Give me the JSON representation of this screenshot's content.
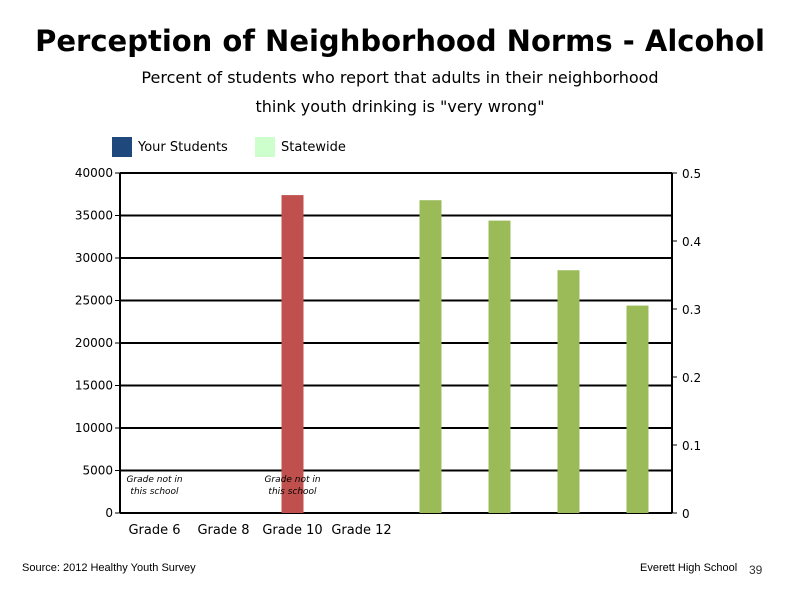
{
  "title": "Perception of Neighborhood Norms - Alcohol",
  "subtitle_line1": "Percent of students who report that adults in their neighborhood",
  "subtitle_line2": "think youth drinking is \"very wrong\"",
  "legend": [
    {
      "label": "Your Students",
      "color": "#1f497d"
    },
    {
      "label": "Statewide",
      "color": "#ccffcc"
    }
  ],
  "footer": {
    "source": "Source: 2012 Healthy Youth Survey",
    "school": "Everett High School",
    "page": "39"
  },
  "chart_data": {
    "type": "bar",
    "categories": [
      "Grade 6",
      "Grade 8",
      "Grade 10",
      "Grade 12"
    ],
    "left_axis": {
      "ticks": [
        "0",
        "5000",
        "10000",
        "15000",
        "20000",
        "25000",
        "30000",
        "35000",
        "40000"
      ],
      "ylim": [
        0,
        40000
      ]
    },
    "right_axis": {
      "ticks": [
        "0",
        "0.1",
        "0.2",
        "0.3",
        "0.4",
        "0.5"
      ],
      "ylim": [
        0,
        0.5
      ]
    },
    "bars": [
      {
        "axis": "left",
        "value": 37400,
        "color": "#c0504d"
      },
      {
        "axis": "right",
        "value": 0.46,
        "color": "#9bbb59"
      },
      {
        "axis": "right",
        "value": 0.43,
        "color": "#9bbb59"
      },
      {
        "axis": "right",
        "value": 0.357,
        "color": "#9bbb59"
      },
      {
        "axis": "right",
        "value": 0.305,
        "color": "#9bbb59"
      }
    ],
    "annotations": [
      {
        "category": "Grade 6",
        "line1": "Grade not in",
        "line2": "this school"
      },
      {
        "category": "Grade 10",
        "line1": "Grade not in",
        "line2": "this school"
      }
    ],
    "grid": true,
    "legend_position": "top-left"
  }
}
